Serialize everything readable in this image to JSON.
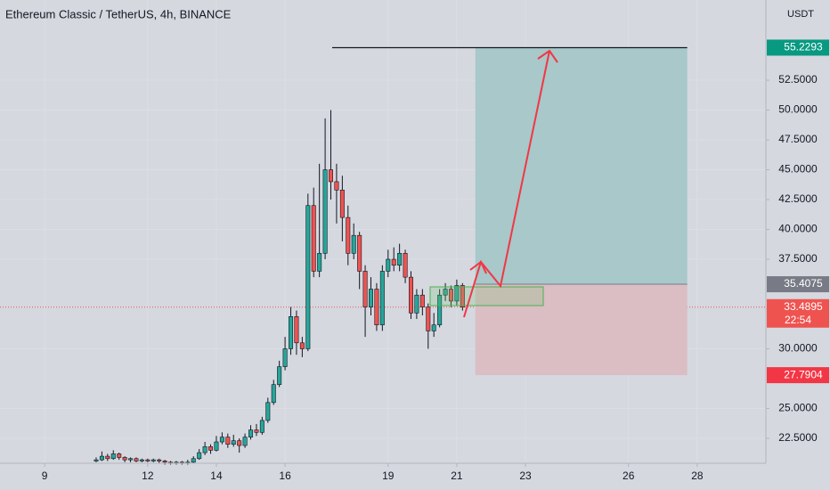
{
  "chart_data": {
    "type": "candlestick",
    "title": "Ethereum Classic / TetherUS, 4h, BINANCE",
    "unit": "USDT",
    "up_color": "#26a69a",
    "down_color": "#ef5350",
    "x": [
      10.5,
      10.667,
      10.833,
      11.0,
      11.167,
      11.333,
      11.5,
      11.667,
      11.833,
      12.0,
      12.167,
      12.333,
      12.5,
      12.667,
      12.833,
      13.0,
      13.167,
      13.333,
      13.5,
      13.667,
      13.833,
      14.0,
      14.167,
      14.333,
      14.5,
      14.667,
      14.833,
      15.0,
      15.167,
      15.333,
      15.5,
      15.667,
      15.833,
      16.0,
      16.167,
      16.333,
      16.5,
      16.667,
      16.833,
      17.0,
      17.167,
      17.333,
      17.5,
      17.667,
      17.833,
      18.0,
      18.167,
      18.333,
      18.5,
      18.667,
      18.833,
      19.0,
      19.167,
      19.333,
      19.5,
      19.667,
      19.833,
      20.0,
      20.167,
      20.333,
      20.5,
      20.667,
      20.833,
      21.0,
      21.167
    ],
    "open": [
      20.6,
      20.7,
      21.0,
      20.8,
      21.2,
      20.9,
      20.7,
      20.8,
      20.6,
      20.7,
      20.6,
      20.7,
      20.6,
      20.5,
      20.4,
      20.5,
      20.4,
      20.5,
      20.8,
      21.3,
      21.8,
      21.5,
      22.2,
      22.6,
      22.0,
      22.3,
      21.9,
      22.6,
      23.2,
      23.0,
      24.0,
      25.5,
      27.0,
      28.5,
      30.0,
      32.7,
      30.5,
      30.0,
      42.0,
      36.5,
      38.0,
      45.0,
      44.0,
      43.3,
      41.0,
      38.0,
      39.5,
      36.5,
      33.5,
      35.0,
      32.0,
      36.5,
      37.5,
      37.0,
      38.0,
      36.0,
      33.0,
      34.5,
      33.5,
      31.5,
      32.0,
      34.5,
      35.0,
      34.0,
      35.3
    ],
    "high": [
      20.9,
      21.4,
      21.2,
      21.5,
      21.3,
      21.0,
      20.9,
      20.9,
      20.8,
      20.8,
      20.8,
      20.8,
      20.7,
      20.6,
      20.6,
      20.6,
      20.7,
      21.0,
      21.6,
      22.2,
      22.0,
      22.7,
      23.0,
      22.9,
      22.8,
      22.5,
      22.9,
      23.6,
      23.7,
      24.3,
      25.9,
      27.4,
      29.0,
      31.0,
      33.5,
      33.2,
      31.0,
      43.0,
      43.5,
      45.5,
      49.3,
      50.0,
      45.5,
      44.5,
      42.0,
      40.5,
      39.8,
      37.0,
      36.0,
      35.5,
      37.0,
      38.3,
      38.5,
      38.8,
      38.3,
      36.5,
      35.0,
      35.0,
      33.8,
      33.0,
      35.0,
      35.5,
      35.3,
      35.8,
      35.5
    ],
    "low": [
      20.5,
      20.6,
      20.6,
      20.7,
      20.7,
      20.5,
      20.5,
      20.5,
      20.5,
      20.5,
      20.5,
      20.4,
      20.3,
      20.3,
      20.3,
      20.3,
      20.3,
      20.4,
      20.7,
      21.1,
      21.2,
      21.4,
      22.0,
      21.7,
      21.8,
      21.3,
      21.7,
      22.4,
      22.7,
      22.8,
      23.8,
      25.3,
      26.8,
      28.2,
      29.5,
      29.5,
      29.3,
      29.8,
      36.0,
      36.0,
      37.5,
      42.5,
      40.5,
      39.0,
      37.0,
      37.5,
      35.0,
      31.0,
      32.8,
      31.5,
      31.5,
      36.0,
      36.5,
      36.5,
      35.5,
      32.5,
      32.5,
      32.8,
      30.0,
      31.0,
      31.8,
      34.0,
      33.5,
      33.6,
      33.2
    ],
    "close": [
      20.7,
      21.0,
      20.8,
      21.2,
      20.9,
      20.7,
      20.8,
      20.6,
      20.7,
      20.6,
      20.7,
      20.6,
      20.5,
      20.4,
      20.5,
      20.4,
      20.5,
      20.8,
      21.3,
      21.8,
      21.5,
      22.2,
      22.6,
      22.0,
      22.3,
      21.9,
      22.6,
      23.2,
      23.0,
      24.0,
      25.5,
      27.0,
      28.5,
      30.0,
      32.7,
      30.5,
      30.0,
      42.0,
      36.5,
      38.0,
      45.0,
      44.0,
      43.3,
      41.0,
      38.0,
      39.5,
      36.5,
      33.5,
      35.0,
      32.0,
      36.5,
      37.5,
      37.0,
      38.0,
      36.0,
      33.0,
      34.5,
      33.5,
      31.5,
      32.0,
      34.5,
      35.0,
      34.0,
      35.3,
      33.4895
    ],
    "countdown": "22:54",
    "position": {
      "entry": 35.4075,
      "target": 55.2293,
      "stop": 27.7904,
      "x": [
        21.54,
        27.71
      ]
    },
    "xlim": [
      7.7,
      30.0
    ],
    "ylim": [
      20.41,
      59.22
    ],
    "xticks": [
      9,
      12,
      14,
      16,
      19,
      21,
      23,
      26,
      28
    ],
    "yticks": [
      {
        "value": 22.5,
        "label": "22.5000"
      },
      {
        "value": 25,
        "label": "25.0000"
      },
      {
        "value": 30,
        "label": "30.0000"
      },
      {
        "value": 37.5,
        "label": "37.5000"
      },
      {
        "value": 40,
        "label": "40.0000"
      },
      {
        "value": 42.5,
        "label": "42.5000"
      },
      {
        "value": 45,
        "label": "45.0000"
      },
      {
        "value": 47.5,
        "label": "47.5000"
      },
      {
        "value": 50,
        "label": "50.0000"
      },
      {
        "value": 52.5,
        "label": "52.5000"
      }
    ],
    "grid": true
  }
}
